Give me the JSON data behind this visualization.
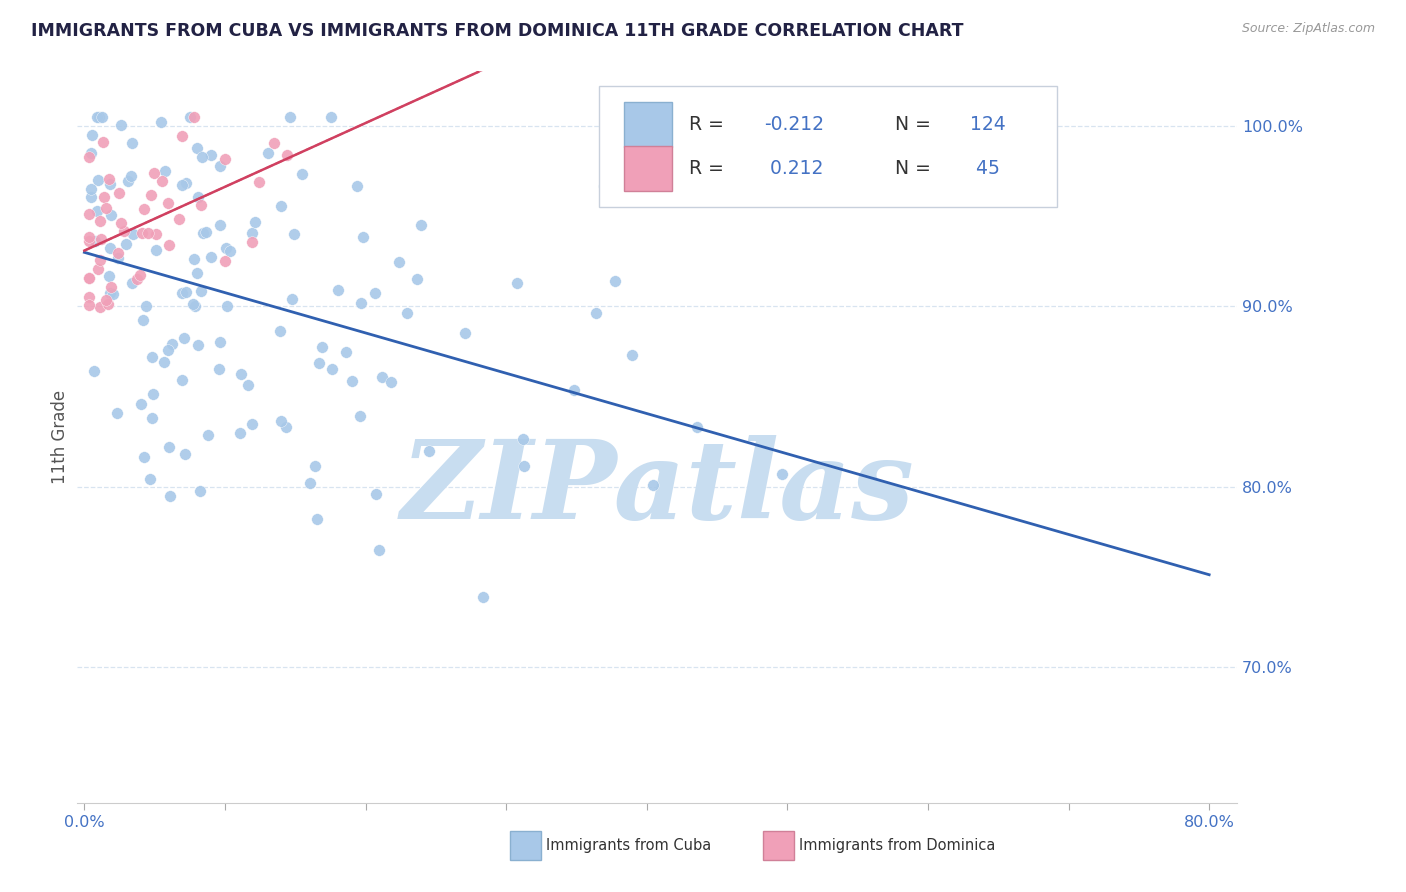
{
  "title": "IMMIGRANTS FROM CUBA VS IMMIGRANTS FROM DOMINICA 11TH GRADE CORRELATION CHART",
  "source_text": "Source: ZipAtlas.com",
  "ylabel": "11th Grade",
  "xlim": [
    -0.005,
    0.82
  ],
  "ylim": [
    0.625,
    1.03
  ],
  "yticks": [
    0.7,
    0.8,
    0.9,
    1.0
  ],
  "ytick_labels": [
    "70.0%",
    "80.0%",
    "90.0%",
    "100.0%"
  ],
  "xticks": [
    0.0,
    0.1,
    0.2,
    0.3,
    0.4,
    0.5,
    0.6,
    0.7,
    0.8
  ],
  "xtick_labels": [
    "0.0%",
    "",
    "",
    "",
    "",
    "",
    "",
    "",
    "80.0%"
  ],
  "blue_color": "#a8c8e8",
  "pink_color": "#f0a0b8",
  "blue_line_color": "#3060b0",
  "pink_line_color": "#d04060",
  "watermark": "ZIPatlas",
  "watermark_color": "#c8ddf0",
  "grid_color": "#d8e4f0",
  "title_color": "#222244",
  "source_color": "#999999",
  "tick_color": "#4472c4",
  "ylabel_color": "#555555"
}
